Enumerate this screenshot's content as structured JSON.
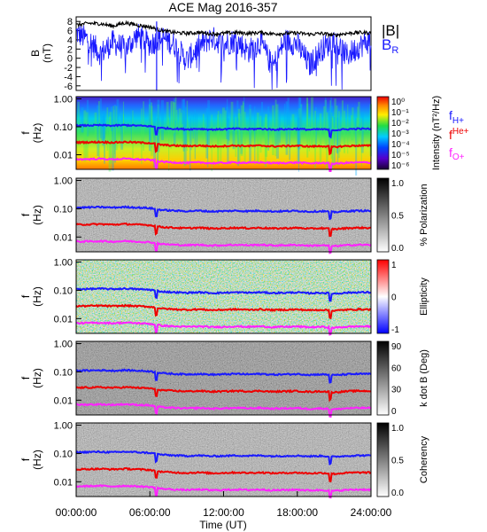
{
  "title": "ACE Mag 2016-357",
  "colors": {
    "B_total": "#000000",
    "B_R": "#1a1aff",
    "f_H": "#1a1aff",
    "f_He": "#ee0000",
    "f_O": "#ff22ff"
  },
  "chart_data": [
    {
      "type": "line",
      "panel": "magnetic-field",
      "ylabel": "B (nT)",
      "ylim": [
        -7,
        9
      ],
      "yticks": [
        "-6",
        "-4",
        "-2",
        "0",
        "2",
        "4",
        "6",
        "8"
      ],
      "legend": {
        "B_total": "|B|",
        "B_R": "B_R"
      },
      "legend_placement": "right",
      "series": [
        {
          "name": "|B|",
          "x_hours": [
            0,
            1,
            2,
            3,
            4,
            5,
            6,
            7,
            8,
            9,
            10,
            11,
            12,
            13,
            14,
            15,
            16,
            17,
            18,
            19,
            20,
            21,
            22,
            23,
            24
          ],
          "values": [
            7.2,
            7.6,
            7.5,
            7.0,
            7.7,
            7.2,
            6.8,
            6.0,
            5.6,
            5.4,
            5.6,
            5.3,
            5.4,
            5.6,
            5.4,
            5.6,
            5.3,
            5.4,
            5.5,
            5.2,
            5.4,
            5.0,
            5.4,
            5.6,
            5.5
          ]
        },
        {
          "name": "B_R",
          "x_hours": [
            0,
            1,
            2,
            3,
            4,
            5,
            6,
            7,
            8,
            9,
            10,
            11,
            12,
            13,
            14,
            15,
            16,
            17,
            18,
            19,
            20,
            21,
            22,
            23,
            24
          ],
          "values": [
            5.5,
            4.0,
            1.0,
            3.5,
            2.0,
            5.0,
            3.0,
            4.5,
            3.0,
            -0.5,
            2.5,
            4.5,
            3.0,
            4.0,
            1.5,
            3.5,
            -2.0,
            4.0,
            3.0,
            -1.5,
            2.0,
            4.0,
            0.5,
            2.5,
            4.0
          ]
        }
      ]
    },
    {
      "type": "heatmap",
      "panel": "intensity",
      "ylabel": "f (Hz)",
      "yscale": "log",
      "ylim": [
        0.003,
        1.0
      ],
      "yticks": [
        "1.00",
        "0.10",
        "0.01"
      ],
      "colorbar": {
        "label": "Intensity (nT²/Hz)",
        "ticks": [
          "10⁰",
          "10⁻¹",
          "10⁻²",
          "10⁻³",
          "10⁻⁴",
          "10⁻⁵",
          "10⁻⁶"
        ],
        "scale": "rainbow"
      },
      "legend": {
        "f_H": "fH+",
        "f_He": "fHe+",
        "f_O": "fO+"
      }
    },
    {
      "type": "heatmap",
      "panel": "polarization",
      "ylabel": "f (Hz)",
      "yscale": "log",
      "yticks": [
        "1.00",
        "0.10",
        "0.01"
      ],
      "colorbar": {
        "label": "% Polarization",
        "ticks": [
          "1.0",
          "0.5",
          "0.0"
        ],
        "scale": "gray"
      }
    },
    {
      "type": "heatmap",
      "panel": "ellipticity",
      "ylabel": "f (Hz)",
      "yscale": "log",
      "yticks": [
        "1.00",
        "0.10",
        "0.01"
      ],
      "colorbar": {
        "label": "Ellipticity",
        "ticks": [
          "1",
          "0",
          "-1"
        ],
        "scale": "blue-white-red"
      }
    },
    {
      "type": "heatmap",
      "panel": "k-dot-b",
      "ylabel": "f (Hz)",
      "yscale": "log",
      "yticks": [
        "1.00",
        "0.10",
        "0.01"
      ],
      "colorbar": {
        "label": "k dot B (Deg)",
        "ticks": [
          "90",
          "60",
          "30",
          "0"
        ],
        "scale": "gray"
      }
    },
    {
      "type": "heatmap",
      "panel": "coherency",
      "ylabel": "f (Hz)",
      "yscale": "log",
      "yticks": [
        "1.00",
        "0.10",
        "0.01"
      ],
      "colorbar": {
        "label": "Coherency",
        "ticks": [
          "1.0",
          "0.5",
          "0.0"
        ],
        "scale": "gray"
      },
      "xlabel": "Time (UT)",
      "xticks": [
        "00:00:00",
        "06:00:00",
        "12:00:00",
        "18:00:00",
        "24:00:00"
      ],
      "xlim_hours": [
        0,
        24
      ]
    }
  ],
  "gyrofrequencies": {
    "x_hours": [
      0,
      1,
      2,
      3,
      4,
      5,
      6,
      7,
      8,
      9,
      10,
      11,
      12,
      13,
      14,
      15,
      16,
      17,
      18,
      19,
      20,
      21,
      22,
      23,
      24
    ],
    "f_H_hz": [
      0.11,
      0.112,
      0.114,
      0.11,
      0.115,
      0.11,
      0.105,
      0.09,
      0.085,
      0.082,
      0.085,
      0.08,
      0.082,
      0.085,
      0.082,
      0.085,
      0.08,
      0.082,
      0.084,
      0.079,
      0.082,
      0.076,
      0.082,
      0.085,
      0.084
    ]
  }
}
